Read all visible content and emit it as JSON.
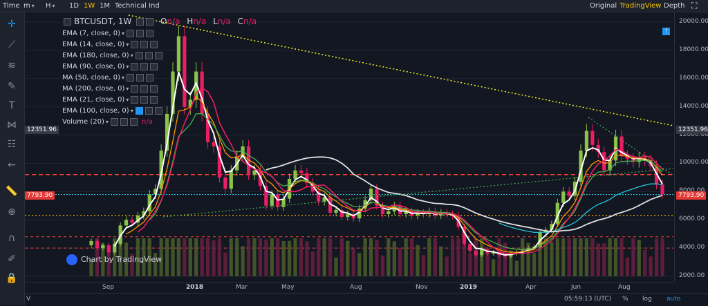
{
  "topbar": {
    "time_label": "Time",
    "minutes_label": "m",
    "hours_label": "H",
    "interval_1d": "1D",
    "interval_1w": "1W",
    "interval_1m": "1M",
    "technical_ind": "Technical Ind",
    "view_original": "Original",
    "view_tradingview": "TradingView",
    "view_depth": "Depth"
  },
  "header": {
    "symbol": "BTCUSDT, 1W",
    "o_label": "O",
    "o_value": "n/a",
    "h_label": "H",
    "h_value": "n/a",
    "l_label": "L",
    "l_value": "n/a",
    "c_label": "C",
    "c_value": "n/a"
  },
  "indicators": [
    {
      "label": "EMA (7, close, 0)"
    },
    {
      "label": "EMA (14, close, 0)"
    },
    {
      "label": "EMA (180, close, 0)"
    },
    {
      "label": "EMA (90, close, 0)"
    },
    {
      "label": "MA (50, close, 0)"
    },
    {
      "label": "MA (200, close, 0)"
    },
    {
      "label": "EMA (21, close, 0)"
    },
    {
      "label": "EMA (100, close, 0)"
    },
    {
      "label": "Volume (20)",
      "value": "n/a"
    }
  ],
  "price_axis": {
    "ticks": [
      "20000.00",
      "18000.00",
      "16000.00",
      "14000.00",
      "12000.00",
      "10000.00",
      "8000.00",
      "6000.00",
      "4000.00",
      "2000.00"
    ],
    "tag_high": "12351.96",
    "tag_current": "7793.90"
  },
  "time_axis": {
    "ticks": [
      "Sep",
      "2018",
      "Mar",
      "May",
      "Aug",
      "Nov",
      "2019",
      "Apr",
      "Jun",
      "Aug"
    ]
  },
  "watermark": "Chart by TradingView",
  "status": {
    "clock": "05:59:13 (UTC)",
    "percent": "%",
    "log": "log",
    "auto": "auto"
  },
  "colors": {
    "up": "#8bc34a",
    "down": "#e91e63",
    "background": "#131722",
    "current_price": "#26c6da",
    "resistance": "#f44336",
    "trendline": "#f4f41c"
  },
  "chart_data": {
    "type": "candlestick",
    "symbol": "BTCUSDT",
    "interval": "1W",
    "ylim": [
      2000,
      20000
    ],
    "candles": [
      {
        "o": 4200,
        "c": 4500
      },
      {
        "o": 4500,
        "c": 4000
      },
      {
        "o": 4000,
        "c": 4200
      },
      {
        "o": 4200,
        "c": 3700
      },
      {
        "o": 3700,
        "c": 4300
      },
      {
        "o": 4300,
        "c": 5600
      },
      {
        "o": 5600,
        "c": 6000
      },
      {
        "o": 6000,
        "c": 5800
      },
      {
        "o": 5800,
        "c": 6300
      },
      {
        "o": 6300,
        "c": 6600
      },
      {
        "o": 6600,
        "c": 7800
      },
      {
        "o": 7800,
        "c": 8200
      },
      {
        "o": 8200,
        "c": 10900
      },
      {
        "o": 10900,
        "c": 13500
      },
      {
        "o": 13500,
        "c": 16500
      },
      {
        "o": 16500,
        "c": 19000
      },
      {
        "o": 19000,
        "c": 14000
      },
      {
        "o": 14000,
        "c": 14500
      },
      {
        "o": 14500,
        "c": 16500
      },
      {
        "o": 16500,
        "c": 13500
      },
      {
        "o": 13500,
        "c": 11500
      },
      {
        "o": 11500,
        "c": 11200
      },
      {
        "o": 11200,
        "c": 9000
      },
      {
        "o": 9000,
        "c": 8200
      },
      {
        "o": 8200,
        "c": 9500
      },
      {
        "o": 9500,
        "c": 10500
      },
      {
        "o": 10500,
        "c": 11200
      },
      {
        "o": 11200,
        "c": 9200
      },
      {
        "o": 9200,
        "c": 9500
      },
      {
        "o": 9500,
        "c": 8400
      },
      {
        "o": 8400,
        "c": 7000
      },
      {
        "o": 7000,
        "c": 7800
      },
      {
        "o": 7800,
        "c": 6900
      },
      {
        "o": 6900,
        "c": 7500
      },
      {
        "o": 7500,
        "c": 8900
      },
      {
        "o": 8900,
        "c": 9500
      },
      {
        "o": 9500,
        "c": 9300
      },
      {
        "o": 9300,
        "c": 8600
      },
      {
        "o": 8600,
        "c": 8000
      },
      {
        "o": 8000,
        "c": 7300
      },
      {
        "o": 7300,
        "c": 7600
      },
      {
        "o": 7600,
        "c": 6500
      },
      {
        "o": 6500,
        "c": 6700
      },
      {
        "o": 6700,
        "c": 6200
      },
      {
        "o": 6200,
        "c": 6400
      },
      {
        "o": 6400,
        "c": 6100
      },
      {
        "o": 6100,
        "c": 6800
      },
      {
        "o": 6800,
        "c": 7400
      },
      {
        "o": 7400,
        "c": 8200
      },
      {
        "o": 8200,
        "c": 7000
      },
      {
        "o": 7000,
        "c": 6400
      },
      {
        "o": 6400,
        "c": 6600
      },
      {
        "o": 6600,
        "c": 7000
      },
      {
        "o": 7000,
        "c": 6400
      },
      {
        "o": 6400,
        "c": 6600
      },
      {
        "o": 6600,
        "c": 6300
      },
      {
        "o": 6300,
        "c": 6500
      },
      {
        "o": 6500,
        "c": 6400
      },
      {
        "o": 6400,
        "c": 6600
      },
      {
        "o": 6600,
        "c": 6300
      },
      {
        "o": 6300,
        "c": 6500
      },
      {
        "o": 6500,
        "c": 6400
      },
      {
        "o": 6400,
        "c": 6300
      },
      {
        "o": 6300,
        "c": 5500
      },
      {
        "o": 5500,
        "c": 4300
      },
      {
        "o": 4300,
        "c": 3800
      },
      {
        "o": 3800,
        "c": 3500
      },
      {
        "o": 3500,
        "c": 3900
      },
      {
        "o": 3900,
        "c": 3600
      },
      {
        "o": 3600,
        "c": 3700
      },
      {
        "o": 3700,
        "c": 3500
      },
      {
        "o": 3500,
        "c": 3400
      },
      {
        "o": 3400,
        "c": 3600
      },
      {
        "o": 3600,
        "c": 3700
      },
      {
        "o": 3700,
        "c": 3800
      },
      {
        "o": 3800,
        "c": 4000
      },
      {
        "o": 4000,
        "c": 4100
      },
      {
        "o": 4100,
        "c": 5100
      },
      {
        "o": 5100,
        "c": 5300
      },
      {
        "o": 5300,
        "c": 5700
      },
      {
        "o": 5700,
        "c": 7200
      },
      {
        "o": 7200,
        "c": 8000
      },
      {
        "o": 8000,
        "c": 7700
      },
      {
        "o": 7700,
        "c": 8700
      },
      {
        "o": 8700,
        "c": 10900
      },
      {
        "o": 10900,
        "c": 12300
      },
      {
        "o": 12300,
        "c": 11300
      },
      {
        "o": 11300,
        "c": 10800
      },
      {
        "o": 10800,
        "c": 9500
      },
      {
        "o": 9500,
        "c": 10200
      },
      {
        "o": 10200,
        "c": 11900
      },
      {
        "o": 11900,
        "c": 10500
      },
      {
        "o": 10500,
        "c": 10300
      },
      {
        "o": 10300,
        "c": 10100
      },
      {
        "o": 10100,
        "c": 10400
      },
      {
        "o": 10400,
        "c": 10200
      },
      {
        "o": 10200,
        "c": 9800
      },
      {
        "o": 9800,
        "c": 8500
      },
      {
        "o": 8500,
        "c": 7800
      }
    ],
    "moving_averages": [
      {
        "name": "EMA 7",
        "color": "#ffffff"
      },
      {
        "name": "EMA 14",
        "color": "#ff9800"
      },
      {
        "name": "EMA 21",
        "color": "#4caf50"
      },
      {
        "name": "MA 50",
        "color": "#e91e63"
      },
      {
        "name": "EMA 100",
        "color": "#26c6da"
      },
      {
        "name": "MA 200",
        "color": "#e0e0e0"
      }
    ]
  }
}
